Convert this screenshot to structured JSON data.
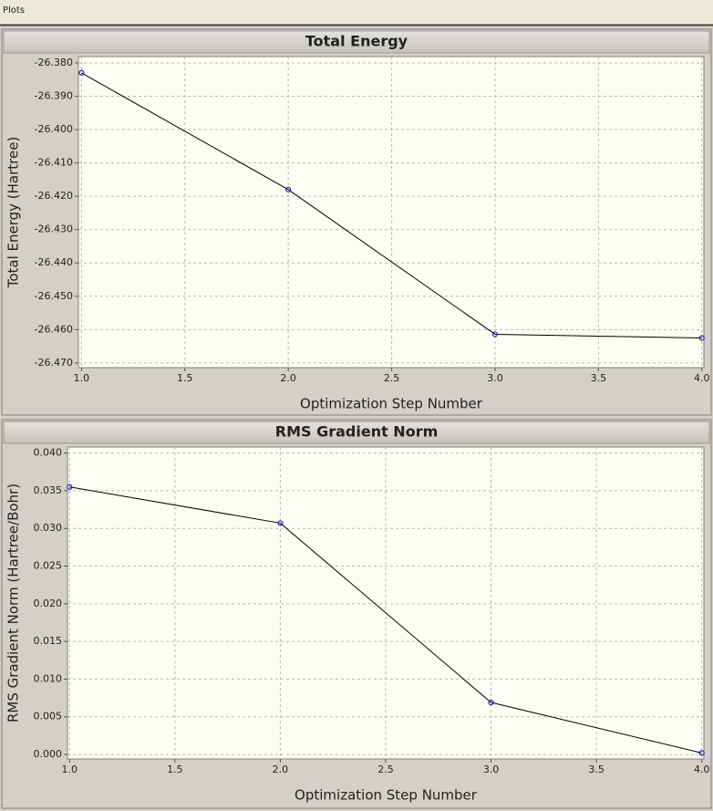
{
  "window_title": "Plots",
  "chart_data": [
    {
      "type": "line",
      "title": "Total Energy",
      "x_label": "Optimization Step Number",
      "y_label": "Total Energy (Hartree)",
      "x": [
        1,
        2,
        3,
        4
      ],
      "values": [
        -26.383,
        -26.418,
        -26.4614,
        -26.4625
      ],
      "color": "#000000",
      "marker_color": "#2020c0",
      "xlim": [
        0.985,
        4.01
      ],
      "ylim": [
        -26.4714,
        -26.3781
      ],
      "grid": true,
      "xticks": [
        {
          "value": 1,
          "label": "1.0"
        },
        {
          "value": 1.5,
          "label": "1.5"
        },
        {
          "value": 2,
          "label": "2.0"
        },
        {
          "value": 2.5,
          "label": "2.5"
        },
        {
          "value": 3,
          "label": "3.0"
        },
        {
          "value": 3.5,
          "label": "3.5"
        },
        {
          "value": 4,
          "label": "4.0"
        }
      ],
      "yticks": [
        {
          "value": -26.38,
          "label": "-26.380"
        },
        {
          "value": -26.39,
          "label": "-26.390"
        },
        {
          "value": -26.4,
          "label": "-26.400"
        },
        {
          "value": -26.41,
          "label": "-26.410"
        },
        {
          "value": -26.42,
          "label": "-26.420"
        },
        {
          "value": -26.43,
          "label": "-26.430"
        },
        {
          "value": -26.44,
          "label": "-26.440"
        },
        {
          "value": -26.45,
          "label": "-26.450"
        },
        {
          "value": -26.46,
          "label": "-26.460"
        },
        {
          "value": -26.47,
          "label": "-26.470"
        }
      ]
    },
    {
      "type": "line",
      "title": "RMS Gradient Norm",
      "x_label": "Optimization Step Number",
      "y_label": "RMS Gradient Norm (Hartree/Bohr)",
      "x": [
        1,
        2,
        3,
        4
      ],
      "values": [
        0.0355,
        0.0307,
        0.0069,
        0.0002
      ],
      "color": "#000000",
      "marker_color": "#2020c0",
      "xlim": [
        0.99,
        4.01
      ],
      "ylim": [
        -0.0006,
        0.0408
      ],
      "grid": true,
      "xticks": [
        {
          "value": 1,
          "label": "1.0"
        },
        {
          "value": 1.5,
          "label": "1.5"
        },
        {
          "value": 2,
          "label": "2.0"
        },
        {
          "value": 2.5,
          "label": "2.5"
        },
        {
          "value": 3,
          "label": "3.0"
        },
        {
          "value": 3.5,
          "label": "3.5"
        },
        {
          "value": 4,
          "label": "4.0"
        }
      ],
      "yticks": [
        {
          "value": 0,
          "label": "0.000"
        },
        {
          "value": 0.005,
          "label": "0.005"
        },
        {
          "value": 0.01,
          "label": "0.010"
        },
        {
          "value": 0.015,
          "label": "0.015"
        },
        {
          "value": 0.02,
          "label": "0.020"
        },
        {
          "value": 0.025,
          "label": "0.025"
        },
        {
          "value": 0.03,
          "label": "0.030"
        },
        {
          "value": 0.035,
          "label": "0.035"
        },
        {
          "value": 0.04,
          "label": "0.040"
        }
      ]
    }
  ]
}
